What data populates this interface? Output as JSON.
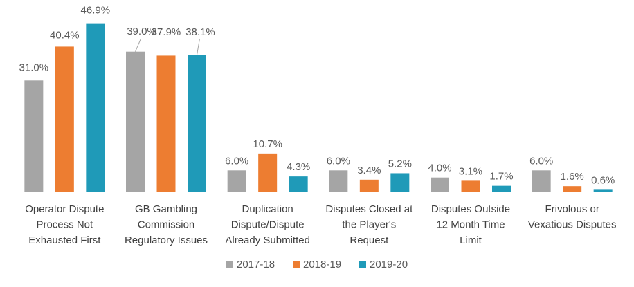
{
  "chart_data": {
    "type": "bar",
    "title": "",
    "xlabel": "",
    "ylabel": "",
    "ylim": [
      0,
      50
    ],
    "ytick_step": 5,
    "grid": true,
    "legend_position": "bottom",
    "categories": [
      [
        "Operator Dispute",
        "Process Not",
        "Exhausted First"
      ],
      [
        "GB Gambling",
        "Commission",
        "Regulatory Issues"
      ],
      [
        "Duplication",
        "Dispute/Dispute",
        "Already Submitted"
      ],
      [
        "Disputes Closed at",
        "the Player's",
        "Request"
      ],
      [
        "Disputes Outside",
        "12 Month Time",
        "Limit"
      ],
      [
        "Frivolous or",
        "Vexatious Disputes"
      ]
    ],
    "series": [
      {
        "name": "2017-18",
        "color": "#a5a5a5",
        "values": [
          31.0,
          39.0,
          6.0,
          6.0,
          4.0,
          6.0
        ],
        "labels": [
          "31.0%",
          "39.0%",
          "6.0%",
          "6.0%",
          "4.0%",
          "6.0%"
        ]
      },
      {
        "name": "2018-19",
        "color": "#ed7d31",
        "values": [
          40.4,
          37.9,
          10.7,
          3.4,
          3.1,
          1.6
        ],
        "labels": [
          "40.4%",
          "37.9%",
          "10.7%",
          "3.4%",
          "3.1%",
          "1.6%"
        ]
      },
      {
        "name": "2019-20",
        "color": "#1f9ab8",
        "values": [
          46.9,
          38.1,
          4.3,
          5.2,
          1.7,
          0.6
        ],
        "labels": [
          "46.9%",
          "38.1%",
          "4.3%",
          "5.2%",
          "1.7%",
          "0.6%"
        ]
      }
    ]
  }
}
